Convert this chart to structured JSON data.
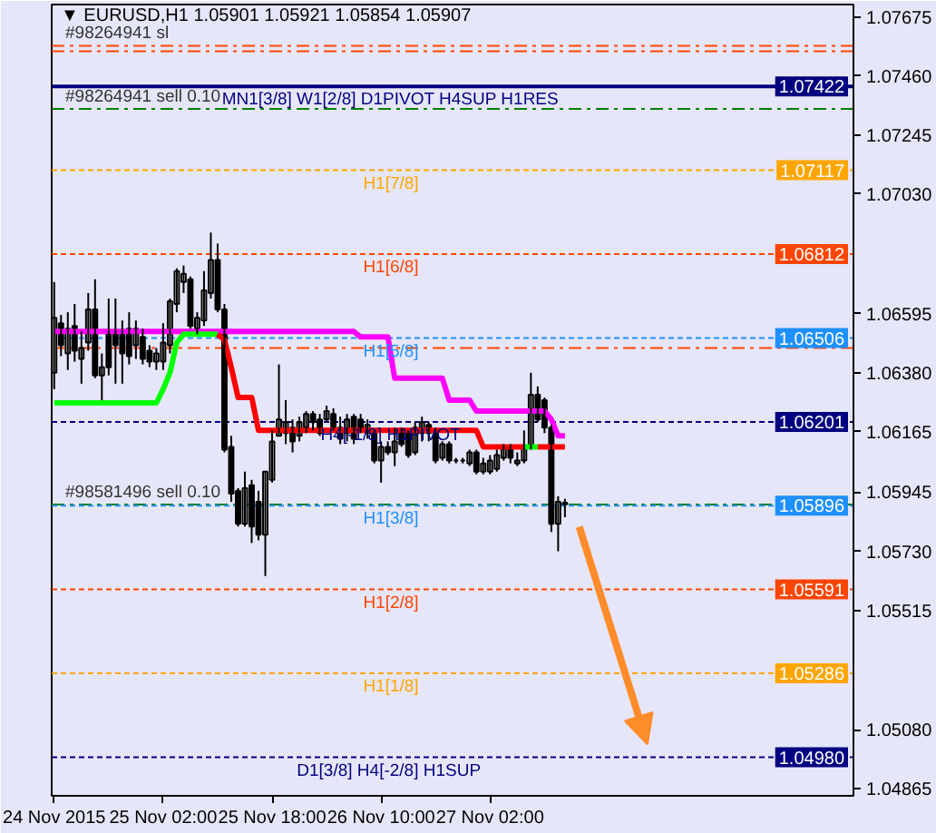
{
  "chart_data": {
    "type": "candlestick",
    "title": "▼ EURUSD,H1 1.05901 1.05921 1.05854 1.05907",
    "x": [
      "2015-11-24T10:00",
      "2015-11-24T11:00",
      "2015-11-24T12:00",
      "2015-11-24T13:00",
      "2015-11-24T14:00",
      "2015-11-24T15:00",
      "2015-11-24T16:00",
      "2015-11-24T17:00",
      "2015-11-24T18:00",
      "2015-11-24T19:00",
      "2015-11-24T20:00",
      "2015-11-24T21:00",
      "2015-11-24T22:00",
      "2015-11-24T23:00",
      "2015-11-25T00:00",
      "2015-11-25T01:00",
      "2015-11-25T02:00",
      "2015-11-25T03:00",
      "2015-11-25T04:00",
      "2015-11-25T05:00",
      "2015-11-25T06:00",
      "2015-11-25T07:00",
      "2015-11-25T08:00",
      "2015-11-25T09:00",
      "2015-11-25T10:00",
      "2015-11-25T11:00",
      "2015-11-25T12:00",
      "2015-11-25T13:00",
      "2015-11-25T14:00",
      "2015-11-25T15:00",
      "2015-11-25T16:00",
      "2015-11-25T17:00",
      "2015-11-25T18:00",
      "2015-11-25T19:00",
      "2015-11-25T20:00",
      "2015-11-25T21:00",
      "2015-11-25T22:00",
      "2015-11-25T23:00",
      "2015-11-26T00:00",
      "2015-11-26T01:00",
      "2015-11-26T02:00",
      "2015-11-26T03:00",
      "2015-11-26T04:00",
      "2015-11-26T05:00",
      "2015-11-26T06:00",
      "2015-11-26T07:00",
      "2015-11-26T08:00",
      "2015-11-26T09:00",
      "2015-11-26T10:00",
      "2015-11-26T11:00",
      "2015-11-26T12:00",
      "2015-11-26T13:00",
      "2015-11-26T14:00",
      "2015-11-26T15:00",
      "2015-11-26T16:00",
      "2015-11-26T17:00",
      "2015-11-26T18:00",
      "2015-11-26T19:00",
      "2015-11-26T20:00",
      "2015-11-26T21:00",
      "2015-11-26T22:00",
      "2015-11-26T23:00",
      "2015-11-27T00:00",
      "2015-11-27T01:00",
      "2015-11-27T02:00",
      "2015-11-27T03:00",
      "2015-11-27T04:00",
      "2015-11-27T05:00",
      "2015-11-27T06:00",
      "2015-11-27T07:00",
      "2015-11-27T08:00",
      "2015-11-27T09:00",
      "2015-11-27T10:00",
      "2015-11-27T11:00",
      "2015-11-27T12:00",
      "2015-11-27T13:00"
    ],
    "ohlc": [
      [
        1.0638,
        1.0671,
        1.0632,
        1.0658
      ],
      [
        1.0656,
        1.0659,
        1.0644,
        1.0648
      ],
      [
        1.0645,
        1.066,
        1.0639,
        1.0654
      ],
      [
        1.0655,
        1.0663,
        1.0642,
        1.0646
      ],
      [
        1.0643,
        1.0653,
        1.0634,
        1.0647
      ],
      [
        1.0649,
        1.0667,
        1.0646,
        1.0661
      ],
      [
        1.0661,
        1.0672,
        1.0636,
        1.0637
      ],
      [
        1.0637,
        1.0645,
        1.0628,
        1.064
      ],
      [
        1.0652,
        1.0665,
        1.0637,
        1.064
      ],
      [
        1.0652,
        1.0665,
        1.0634,
        1.0648
      ],
      [
        1.0653,
        1.0657,
        1.0634,
        1.0645
      ],
      [
        1.0654,
        1.066,
        1.0641,
        1.0644
      ],
      [
        1.0648,
        1.0657,
        1.0643,
        1.0654
      ],
      [
        1.0651,
        1.0654,
        1.0641,
        1.0643
      ],
      [
        1.0646,
        1.0648,
        1.064,
        1.0642
      ],
      [
        1.0642,
        1.0647,
        1.0639,
        1.0645
      ],
      [
        1.0642,
        1.0656,
        1.0639,
        1.0649
      ],
      [
        1.0648,
        1.0665,
        1.0645,
        1.0664
      ],
      [
        1.0663,
        1.0676,
        1.066,
        1.0675
      ],
      [
        1.0671,
        1.0677,
        1.0667,
        1.0674
      ],
      [
        1.0672,
        1.0673,
        1.0654,
        1.0655
      ],
      [
        1.0654,
        1.066,
        1.0652,
        1.0658
      ],
      [
        1.0657,
        1.0675,
        1.0655,
        1.0668
      ],
      [
        1.0667,
        1.0689,
        1.0665,
        1.0679
      ],
      [
        1.0679,
        1.0685,
        1.066,
        1.0661
      ],
      [
        1.0661,
        1.0663,
        1.0609,
        1.061
      ],
      [
        1.0611,
        1.0615,
        1.0591,
        1.0594
      ],
      [
        1.0595,
        1.0596,
        1.0582,
        1.0583
      ],
      [
        1.0583,
        1.0602,
        1.0582,
        1.0596
      ],
      [
        1.0597,
        1.0599,
        1.0576,
        1.0582
      ],
      [
        1.0591,
        1.0595,
        1.0577,
        1.0579
      ],
      [
        1.0579,
        1.0602,
        1.0564,
        1.0602
      ],
      [
        1.0599,
        1.0617,
        1.0598,
        1.0613
      ],
      [
        1.0615,
        1.0641,
        1.0615,
        1.0621
      ],
      [
        1.0616,
        1.0628,
        1.0612,
        1.062
      ],
      [
        1.0618,
        1.0621,
        1.0609,
        1.0613
      ],
      [
        1.0615,
        1.0622,
        1.0613,
        1.062
      ],
      [
        1.0618,
        1.0624,
        1.0616,
        1.0623
      ],
      [
        1.0623,
        1.0624,
        1.0617,
        1.062
      ],
      [
        1.0621,
        1.0623,
        1.0615,
        1.0616
      ],
      [
        1.0621,
        1.0626,
        1.062,
        1.0624
      ],
      [
        1.0623,
        1.0625,
        1.0617,
        1.0618
      ],
      [
        1.0618,
        1.0622,
        1.0612,
        1.0614
      ],
      [
        1.0616,
        1.0623,
        1.0613,
        1.0621
      ],
      [
        1.0622,
        1.0623,
        1.0612,
        1.0614
      ],
      [
        1.0621,
        1.0623,
        1.0616,
        1.0617
      ],
      [
        1.0616,
        1.0621,
        1.0614,
        1.0619
      ],
      [
        1.0616,
        1.0617,
        1.0605,
        1.0606
      ],
      [
        1.0606,
        1.0613,
        1.0598,
        1.0611
      ],
      [
        1.0611,
        1.0613,
        1.0608,
        1.0609
      ],
      [
        1.0609,
        1.0618,
        1.0604,
        1.0613
      ],
      [
        1.0616,
        1.0618,
        1.0611,
        1.0612
      ],
      [
        1.0616,
        1.0617,
        1.0607,
        1.0608
      ],
      [
        1.0609,
        1.062,
        1.0608,
        1.0618
      ],
      [
        1.0616,
        1.0622,
        1.0613,
        1.062
      ],
      [
        1.0619,
        1.062,
        1.0613,
        1.0616
      ],
      [
        1.0616,
        1.0618,
        1.0605,
        1.0606
      ],
      [
        1.0607,
        1.0613,
        1.0606,
        1.0612
      ],
      [
        1.0612,
        1.0613,
        1.0605,
        1.0606
      ],
      [
        1.0606,
        1.0607,
        1.0605,
        1.0606
      ],
      [
        1.0606,
        1.0607,
        1.0605,
        1.0606
      ],
      [
        1.0605,
        1.061,
        1.0604,
        1.0609
      ],
      [
        1.0609,
        1.061,
        1.0601,
        1.0602
      ],
      [
        1.0602,
        1.0607,
        1.0601,
        1.0605
      ],
      [
        1.0602,
        1.0608,
        1.0601,
        1.0606
      ],
      [
        1.0603,
        1.061,
        1.0602,
        1.0608
      ],
      [
        1.0607,
        1.0612,
        1.0606,
        1.0611
      ],
      [
        1.0611,
        1.0612,
        1.0605,
        1.0607
      ],
      [
        1.0605,
        1.0609,
        1.0604,
        1.0606
      ],
      [
        1.0606,
        1.0617,
        1.0605,
        1.0611
      ],
      [
        1.0611,
        1.0638,
        1.061,
        1.063
      ],
      [
        1.063,
        1.0633,
        1.062,
        1.0621
      ],
      [
        1.0628,
        1.0629,
        1.0616,
        1.0618
      ],
      [
        1.0618,
        1.0619,
        1.058,
        1.0583
      ],
      [
        1.0583,
        1.0593,
        1.0573,
        1.0591
      ],
      [
        1.05901,
        1.05921,
        1.05854,
        1.05907
      ]
    ],
    "series": [
      {
        "type": "line",
        "color": "#ff00ff",
        "values": [
          1.0653,
          1.0653,
          1.0653,
          1.0653,
          1.0653,
          1.0653,
          1.0653,
          1.0653,
          1.0653,
          1.0653,
          1.0653,
          1.0653,
          1.0653,
          1.0653,
          1.0653,
          1.0653,
          1.0653,
          1.0653,
          1.0653,
          1.0653,
          1.0653,
          1.0653,
          1.0653,
          1.0653,
          1.0653,
          1.0653,
          1.0653,
          1.0653,
          1.0653,
          1.0653,
          1.0653,
          1.0653,
          1.0653,
          1.0653,
          1.0653,
          1.0653,
          1.0653,
          1.0653,
          1.0653,
          1.0653,
          1.0653,
          1.0653,
          1.0653,
          1.0653,
          1.0653,
          1.0651,
          1.0651,
          1.0651,
          1.0651,
          1.0651,
          1.0636,
          1.0636,
          1.0636,
          1.0636,
          1.0636,
          1.0636,
          1.0636,
          1.0636,
          1.0628,
          1.0628,
          1.0628,
          1.0628,
          1.0624,
          1.0624,
          1.0624,
          1.0624,
          1.0624,
          1.0624,
          1.0624,
          1.0624,
          1.0624,
          1.0624,
          1.0624,
          1.0621,
          1.0615,
          1.0615
        ]
      },
      {
        "type": "line",
        "color": "#00ff00",
        "x": [
          "2015-11-24T10:00",
          "2015-11-24T11:00",
          "2015-11-24T12:00",
          "2015-11-24T13:00",
          "2015-11-24T14:00",
          "2015-11-24T15:00",
          "2015-11-24T16:00",
          "2015-11-24T17:00",
          "2015-11-24T18:00",
          "2015-11-24T19:00",
          "2015-11-24T20:00",
          "2015-11-24T21:00",
          "2015-11-24T22:00",
          "2015-11-24T23:00",
          "2015-11-25T00:00",
          "2015-11-25T01:00",
          "2015-11-25T02:00",
          "2015-11-25T03:00",
          "2015-11-25T04:00",
          "2015-11-25T05:00",
          "2015-11-25T06:00",
          "2015-11-25T07:00",
          "2015-11-25T08:00",
          "2015-11-25T09:00",
          "2015-11-25T10:00"
        ],
        "values": [
          1.0627,
          1.0627,
          1.0627,
          1.0627,
          1.0627,
          1.0627,
          1.0627,
          1.0627,
          1.0627,
          1.0627,
          1.0627,
          1.0627,
          1.0627,
          1.0627,
          1.0627,
          1.0627,
          1.0632,
          1.0638,
          1.0649,
          1.0652,
          1.0652,
          1.0652,
          1.0652,
          1.0652,
          1.0652
        ]
      },
      {
        "type": "line",
        "color": "#ff0000",
        "x": [
          "2015-11-25T10:00",
          "2015-11-25T11:00",
          "2015-11-25T12:00",
          "2015-11-25T13:00",
          "2015-11-25T14:00",
          "2015-11-25T15:00",
          "2015-11-25T16:00",
          "2015-11-25T17:00",
          "2015-11-25T18:00",
          "2015-11-25T19:00",
          "2015-11-25T20:00",
          "2015-11-25T21:00",
          "2015-11-25T22:00",
          "2015-11-25T23:00",
          "2015-11-26T00:00",
          "2015-11-26T01:00",
          "2015-11-26T02:00",
          "2015-11-26T03:00",
          "2015-11-26T04:00",
          "2015-11-26T05:00",
          "2015-11-26T06:00",
          "2015-11-26T07:00",
          "2015-11-26T08:00",
          "2015-11-26T09:00",
          "2015-11-26T10:00",
          "2015-11-26T11:00",
          "2015-11-26T12:00",
          "2015-11-26T13:00",
          "2015-11-26T14:00",
          "2015-11-26T15:00",
          "2015-11-26T16:00",
          "2015-11-26T17:00",
          "2015-11-26T18:00",
          "2015-11-26T19:00",
          "2015-11-26T20:00",
          "2015-11-26T21:00",
          "2015-11-26T22:00",
          "2015-11-26T23:00",
          "2015-11-27T00:00",
          "2015-11-27T01:00",
          "2015-11-27T02:00",
          "2015-11-27T03:00",
          "2015-11-27T04:00",
          "2015-11-27T05:00",
          "2015-11-27T06:00",
          "2015-11-27T07:00"
        ],
        "values": [
          1.0652,
          1.065,
          1.064,
          1.0629,
          1.0629,
          1.0629,
          1.0617,
          1.0617,
          1.0617,
          1.0617,
          1.0617,
          1.0617,
          1.0617,
          1.0617,
          1.0617,
          1.0617,
          1.0617,
          1.0617,
          1.0617,
          1.0617,
          1.0617,
          1.0617,
          1.0617,
          1.0617,
          1.0617,
          1.0617,
          1.0617,
          1.0617,
          1.0617,
          1.0617,
          1.0617,
          1.0617,
          1.0617,
          1.0617,
          1.0617,
          1.0617,
          1.0617,
          1.0617,
          1.0617,
          1.0611,
          1.0611,
          1.0611,
          1.0611,
          1.0611,
          1.0611,
          1.0611
        ]
      },
      {
        "type": "line",
        "color": "#00ff00",
        "x": [
          "2015-11-27T07:00",
          "2015-11-27T08:00",
          "2015-11-27T09:00"
        ],
        "values": [
          1.0611,
          1.0611,
          1.0611
        ]
      },
      {
        "type": "line",
        "color": "#ff0000",
        "x": [
          "2015-11-27T09:00",
          "2015-11-27T10:00",
          "2015-11-27T11:00",
          "2015-11-27T12:00",
          "2015-11-27T13:00"
        ],
        "values": [
          1.0611,
          1.0611,
          1.0611,
          1.0611,
          1.0611
        ]
      }
    ],
    "xlim": [
      "2015-11-24T09:38",
      "2015-11-29T07:22"
    ],
    "ylim": [
      1.0484,
      1.0772
    ],
    "xticks": [
      {
        "value": "2015-11-24T10:00",
        "label": "24 Nov 2015"
      },
      {
        "value": "2015-11-25T02:00",
        "label": "25 Nov 02:00"
      },
      {
        "value": "2015-11-25T18:00",
        "label": "25 Nov 18:00"
      },
      {
        "value": "2015-11-26T10:00",
        "label": "26 Nov 10:00"
      },
      {
        "value": "2015-11-27T02:00",
        "label": "27 Nov 02:00"
      }
    ],
    "yticks": [
      1.07675,
      {
        "value": 1.0746,
        "label": "1.07460"
      },
      1.07245,
      {
        "value": 1.0703,
        "label": "1.07030"
      },
      1.06595,
      {
        "value": 1.0638,
        "label": "1.06380"
      },
      1.06165,
      1.05945,
      {
        "value": 1.0573,
        "label": "1.05730"
      },
      1.05515,
      {
        "value": 1.0508,
        "label": "1.05080"
      },
      1.04865
    ],
    "grid": false,
    "ref_lines": [
      {
        "axis": "y",
        "value": 1.0757,
        "label": null,
        "color": "#ff4500",
        "line_style": "dashdot"
      },
      {
        "axis": "y",
        "value": 1.0755,
        "label": null,
        "color": "#ff4500",
        "line_style": "dashdot"
      },
      {
        "axis": "y",
        "value": 1.07422,
        "label": "1.07422",
        "color": "#000080",
        "line_style": "solid"
      },
      {
        "axis": "y",
        "value": 1.0734,
        "label": null,
        "color": "#008000",
        "line_style": "dashdot"
      },
      {
        "axis": "y",
        "value": 1.07117,
        "label": "1.07117",
        "color": "#ffa500",
        "line_style": "dashed"
      },
      {
        "axis": "y",
        "value": 1.06812,
        "label": "1.06812",
        "color": "#ff4500",
        "line_style": "dashed"
      },
      {
        "axis": "y",
        "value": 1.06506,
        "label": "1.06506",
        "color": "#1e90ff",
        "line_style": "dashed"
      },
      {
        "axis": "y",
        "value": 1.0647,
        "label": null,
        "color": "#ff4500",
        "line_style": "dashdot"
      },
      {
        "axis": "y",
        "value": 1.06201,
        "label": "1.06201",
        "color": "#000080",
        "line_style": "dashed"
      },
      {
        "axis": "y",
        "value": 1.059,
        "label": null,
        "color": "#008000",
        "line_style": "dashdot"
      },
      {
        "axis": "y",
        "value": 1.05896,
        "label": "1.05896",
        "color": "#1e90ff",
        "line_style": "dashed"
      },
      {
        "axis": "y",
        "value": 1.05591,
        "label": "1.05591",
        "color": "#ff4500",
        "line_style": "dashed"
      },
      {
        "axis": "y",
        "value": 1.05286,
        "label": "1.05286",
        "color": "#ffa500",
        "line_style": "dashed"
      },
      {
        "axis": "y",
        "value": 1.0498,
        "label": "1.04980",
        "color": "#000080",
        "line_style": "dashed"
      }
    ],
    "annotations": [
      {
        "text": "#98264941 sl",
        "x": "2015-11-24T11:38",
        "y": 1.0757
      },
      {
        "text": "#98264941 sell 0.10",
        "x": "2015-11-24T11:38",
        "y": 1.0734
      },
      {
        "text": "MN1[3/8] W1[2/8] D1PIVOT H4SUP H1RES",
        "x": "2015-11-25T10:38",
        "y": 1.07422
      },
      {
        "text": "H1[7/8]",
        "x": "2015-11-26T07:22",
        "y": 1.07117
      },
      {
        "text": "H1[6/8]",
        "x": "2015-11-26T07:22",
        "y": 1.06812
      },
      {
        "text": "H1[5/8]",
        "x": "2015-11-26T07:22",
        "y": 1.06506
      },
      {
        "text": "H4[-1/8] H1PIVOT",
        "x": "2015-11-26T01:08",
        "y": 1.06201
      },
      {
        "text": "#98581496 sell 0.10",
        "x": "2015-11-24T11:38",
        "y": 1.059
      },
      {
        "text": "H1[3/8]",
        "x": "2015-11-26T07:22",
        "y": 1.05896
      },
      {
        "text": "H1[2/8]",
        "x": "2015-11-26T07:22",
        "y": 1.05591
      },
      {
        "text": "H1[1/8]",
        "x": "2015-11-26T07:22",
        "y": 1.05286
      },
      {
        "text": "D1[3/8] H4[-2/8] H1SUP",
        "x": "2015-11-25T21:38",
        "y": 1.0498
      }
    ]
  }
}
